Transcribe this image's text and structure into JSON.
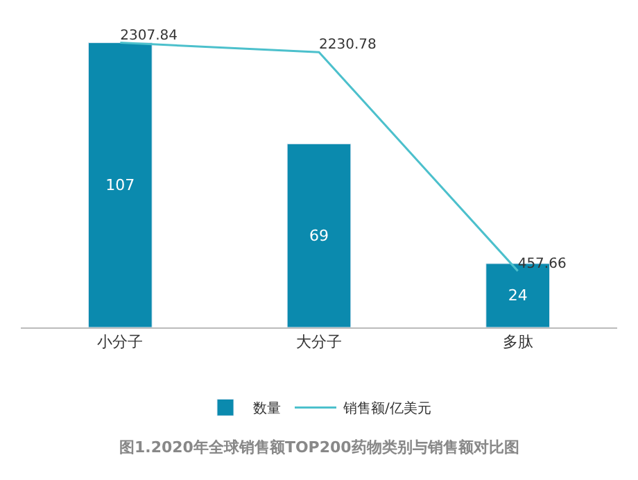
{
  "chart_data": {
    "type": "bar",
    "title": "图1.2020年全球销售额TOP200药物类别与销售额对比图",
    "categories": [
      "小分子",
      "大分子",
      "多肽"
    ],
    "series": [
      {
        "name": "数量",
        "color": "#0b8aae",
        "values": [
          107,
          69,
          24
        ]
      },
      {
        "name": "销售额/亿美元",
        "type": "line",
        "axis": "y2",
        "color": "#4cc0cc",
        "values": [
          2307.84,
          2230.78,
          457.66
        ],
        "marker": "none"
      }
    ],
    "tick_labels": "x",
    "data_labels": true,
    "legend": "bottom"
  }
}
